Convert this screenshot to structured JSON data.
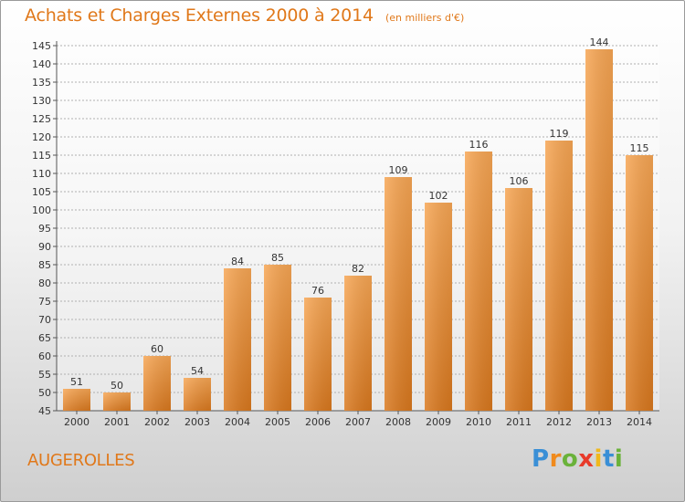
{
  "header": {
    "title": "Achats et Charges Externes 2000 à 2014",
    "subtitle": "(en milliers d'€)"
  },
  "commune": "AUGEROLLES",
  "logo": {
    "letters": [
      {
        "char": "P",
        "color": "#3a8fd6"
      },
      {
        "char": "r",
        "color": "#f08a1c"
      },
      {
        "char": "o",
        "color": "#6ab23a"
      },
      {
        "char": "x",
        "color": "#e83a2a"
      },
      {
        "char": "i",
        "color": "#f0b81c"
      },
      {
        "char": "t",
        "color": "#3a8fd6"
      },
      {
        "char": "i",
        "color": "#6ab23a"
      }
    ]
  },
  "colors": {
    "bar_light": "#f7a654",
    "bar_dark": "#d9781e",
    "title": "#e0781a"
  },
  "chart_data": {
    "type": "bar",
    "categories": [
      "2000",
      "2001",
      "2002",
      "2003",
      "2004",
      "2005",
      "2006",
      "2007",
      "2008",
      "2009",
      "2010",
      "2011",
      "2012",
      "2013",
      "2014"
    ],
    "values": [
      51,
      50,
      60,
      54,
      84,
      85,
      76,
      82,
      109,
      102,
      116,
      106,
      119,
      144,
      115
    ],
    "ylim": [
      45,
      145
    ],
    "yticks": [
      45,
      50,
      55,
      60,
      65,
      70,
      75,
      80,
      85,
      90,
      95,
      100,
      105,
      110,
      115,
      120,
      125,
      130,
      135,
      140,
      145
    ],
    "grid": true
  }
}
